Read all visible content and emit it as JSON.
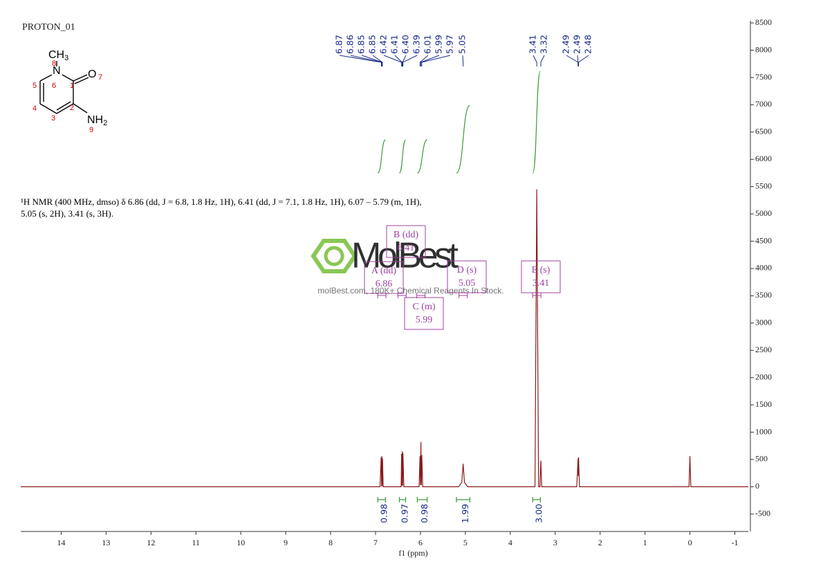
{
  "title": "PROTON_01",
  "structure": {
    "atoms": [
      {
        "text": "CH",
        "sub": "3"
      },
      {
        "text": "N"
      },
      {
        "text": "O"
      },
      {
        "text": "NH",
        "sub": "2"
      }
    ],
    "atom_numbers": [
      "8",
      "6",
      "1",
      "7",
      "5",
      "2",
      "4",
      "3",
      "9"
    ]
  },
  "description": "¹H NMR (400 MHz, dmso) δ 6.86 (dd, J = 6.8, 1.8 Hz, 1H), 6.41 (dd, J = 7.1, 1.8 Hz, 1H), 6.07 – 5.79 (m, 1H), 5.05 (s, 2H), 3.41 (s, 3H).",
  "watermark": {
    "brand": "MolBest",
    "tagline": "molBest.com, 180K+ Chemical Reagents In Stock."
  },
  "chart_data": {
    "type": "line",
    "x_label": "f1 (ppm)",
    "xlim": [
      14.9,
      -1.3
    ],
    "xticks": [
      14,
      13,
      12,
      11,
      10,
      9,
      8,
      7,
      6,
      5,
      4,
      3,
      2,
      1,
      0,
      -1
    ],
    "ylim": [
      -820,
      8540
    ],
    "yticks": [
      -500,
      0,
      500,
      1000,
      1500,
      2000,
      2500,
      3000,
      3500,
      4000,
      4500,
      5000,
      5500,
      6000,
      6500,
      7000,
      7500,
      8000,
      8500
    ],
    "series": [
      {
        "color": "#8b1a1a",
        "x": [
          14.9,
          6.9,
          6.875,
          6.865,
          6.86,
          6.853,
          6.845,
          6.83,
          6.43,
          6.42,
          6.413,
          6.405,
          6.398,
          6.39,
          6.37,
          6.03,
          6.01,
          6.0,
          5.99,
          5.98,
          5.97,
          5.95,
          5.15,
          5.08,
          5.05,
          5.02,
          4.95,
          3.45,
          3.41,
          3.37,
          3.34,
          3.32,
          3.3,
          2.52,
          2.49,
          2.485,
          2.48,
          2.46,
          0.02,
          0,
          -0.02,
          -1.3
        ],
        "values": [
          0,
          0,
          540,
          10,
          560,
          10,
          520,
          0,
          0,
          600,
          20,
          650,
          20,
          620,
          0,
          0,
          560,
          30,
          820,
          30,
          580,
          0,
          0,
          80,
          420,
          80,
          0,
          0,
          5450,
          0,
          0,
          480,
          0,
          0,
          520,
          200,
          540,
          0,
          0,
          560,
          0,
          0
        ]
      }
    ],
    "peak_labels": [
      6.87,
      6.86,
      6.85,
      6.85,
      6.42,
      6.41,
      {
        "value": 6.4,
        "label": "6.40"
      },
      6.39,
      6.01,
      5.99,
      5.97,
      5.05,
      3.41,
      3.32,
      2.49,
      2.49,
      2.48
    ],
    "integrals": [
      {
        "range": [
          6.95,
          6.78
        ],
        "value": 0.98
      },
      {
        "range": [
          6.47,
          6.33
        ],
        "value": 0.97
      },
      {
        "range": [
          6.07,
          5.85
        ],
        "value": 0.98
      },
      {
        "range": [
          5.2,
          4.9
        ],
        "value": 1.99
      },
      {
        "range": [
          3.5,
          3.33
        ],
        "value": {
          "value": 3,
          "label": "3.00"
        }
      }
    ],
    "multiplets": [
      {
        "label": "A (dd)",
        "shift": 6.86
      },
      {
        "label": "B (dd)",
        "shift": 6.41
      },
      {
        "label": "C (m)",
        "shift": 5.99
      },
      {
        "label": "D (s)",
        "shift": 5.05
      },
      {
        "label": "E (s)",
        "shift": 3.41
      }
    ]
  }
}
